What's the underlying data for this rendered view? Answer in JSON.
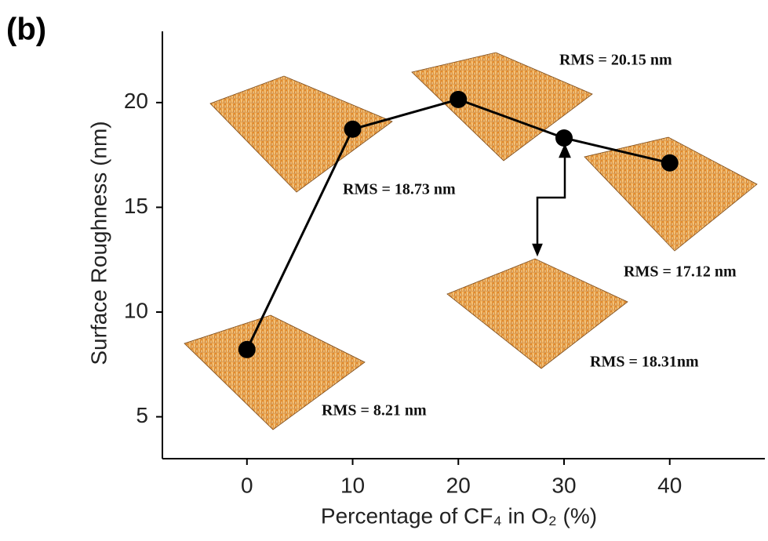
{
  "chart_data": {
    "type": "line",
    "panel_label": "(b)",
    "x_label": "Percentage of CF₄ in O₂ (%)",
    "y_label": "Surface Roughness (nm)",
    "x": [
      0,
      10,
      20,
      30,
      40
    ],
    "values": [
      8.21,
      18.73,
      20.15,
      18.31,
      17.12
    ],
    "value_labels": [
      "RMS = 8.21 nm",
      "RMS = 18.73 nm",
      "RMS = 20.15 nm",
      "RMS = 18.31nm",
      "RMS = 17.12 nm"
    ],
    "color": "#000000",
    "xlim": [
      -8,
      49
    ],
    "xticks": [
      0,
      10,
      20,
      30,
      40
    ],
    "ylim": [
      3,
      23.4
    ],
    "yticks": [
      5,
      10,
      15,
      20
    ]
  }
}
